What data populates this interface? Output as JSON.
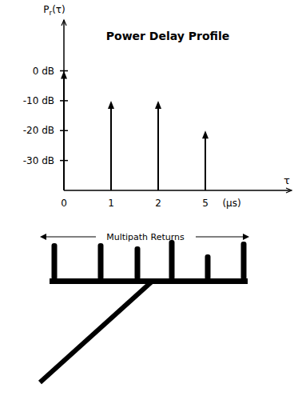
{
  "chart_data": {
    "type": "stem",
    "title": "Power Delay Profile",
    "ylabel": {
      "base": "P",
      "sub": "r",
      "rest": "(τ)"
    },
    "xlabel": "τ",
    "xunit": "(μs)",
    "categories": [
      "0",
      "1",
      "2",
      "5"
    ],
    "values": [
      0,
      -10,
      -10,
      -20
    ],
    "color": "#000000",
    "ylim": [
      -40,
      17
    ],
    "yticks": [
      {
        "value": 0,
        "label": "0 dB"
      },
      {
        "value": -10,
        "label": "-10 dB"
      },
      {
        "value": -20,
        "label": "-20 dB"
      },
      {
        "value": -30,
        "label": "-30 dB"
      }
    ],
    "grid": false,
    "annotations": [
      "Multipath Returns"
    ]
  }
}
